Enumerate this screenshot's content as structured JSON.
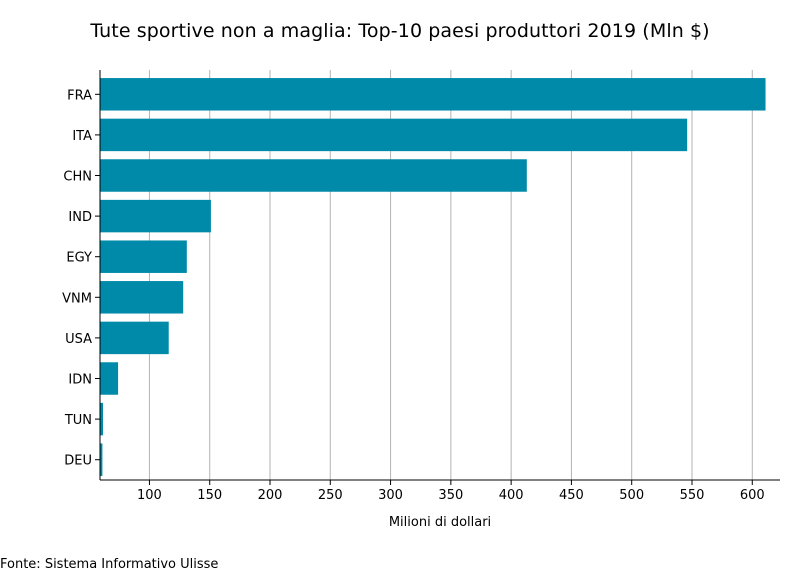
{
  "chart_data": {
    "type": "bar",
    "orientation": "horizontal",
    "title": "Tute sportive non a maglia: Top-10 paesi produttori 2019 (Mln $)",
    "xlabel": "Milioni di dollari",
    "ylabel": "",
    "categories": [
      "FRA",
      "ITA",
      "CHN",
      "IND",
      "EGY",
      "VNM",
      "USA",
      "IDN",
      "TUN",
      "DEU"
    ],
    "values": [
      611,
      546,
      413,
      151,
      131,
      128,
      116,
      74,
      61.5,
      61
    ],
    "xlim": [
      59,
      623
    ],
    "xticks": [
      100,
      150,
      200,
      250,
      300,
      350,
      400,
      450,
      500,
      550,
      600
    ],
    "grid": "vertical",
    "legend": "none",
    "bar_color": "#008aa9"
  },
  "source": "Fonte: Sistema Informativo Ulisse"
}
